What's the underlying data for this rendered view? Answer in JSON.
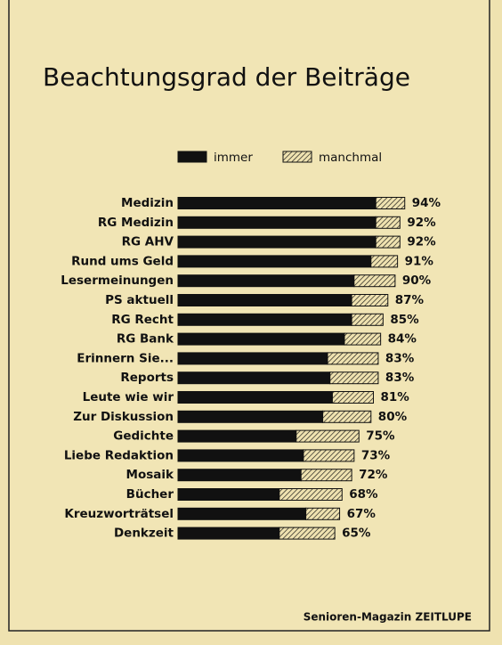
{
  "chart_data": {
    "type": "stacked-bar-horizontal",
    "title": "Beachtungsgrad der Beiträge",
    "source": "Senioren-Magazin ZEITLUPE",
    "categories": [
      "Medizin",
      "RG Medizin",
      "RG AHV",
      "Rund ums Geld",
      "Lesermeinungen",
      "PS aktuell",
      "RG Recht",
      "RG Bank",
      "Erinnern Sie...",
      "Reports",
      "Leute wie wir",
      "Zur Diskussion",
      "Gedichte",
      "Liebe Redaktion",
      "Mosaik",
      "Bücher",
      "Kreuzworträtsel",
      "Denkzeit"
    ],
    "series": [
      {
        "name": "immer",
        "color": "#111111",
        "fill": "solid",
        "values": [
          82,
          82,
          82,
          80,
          73,
          72,
          72,
          69,
          62,
          63,
          64,
          60,
          49,
          52,
          51,
          42,
          53,
          42
        ]
      },
      {
        "name": "manchmal",
        "color": "#111111",
        "fill": "hatched",
        "values": [
          12,
          10,
          10,
          11,
          17,
          15,
          13,
          15,
          21,
          20,
          17,
          20,
          26,
          21,
          21,
          26,
          14,
          23
        ]
      }
    ],
    "totals": [
      94,
      92,
      92,
      91,
      90,
      87,
      85,
      84,
      83,
      83,
      81,
      80,
      75,
      73,
      72,
      68,
      67,
      65
    ],
    "total_labels": [
      "94%",
      "92%",
      "92%",
      "91%",
      "90%",
      "87%",
      "85%",
      "84%",
      "83%",
      "83%",
      "81%",
      "80%",
      "75%",
      "73%",
      "72%",
      "68%",
      "67%",
      "65%"
    ]
  }
}
